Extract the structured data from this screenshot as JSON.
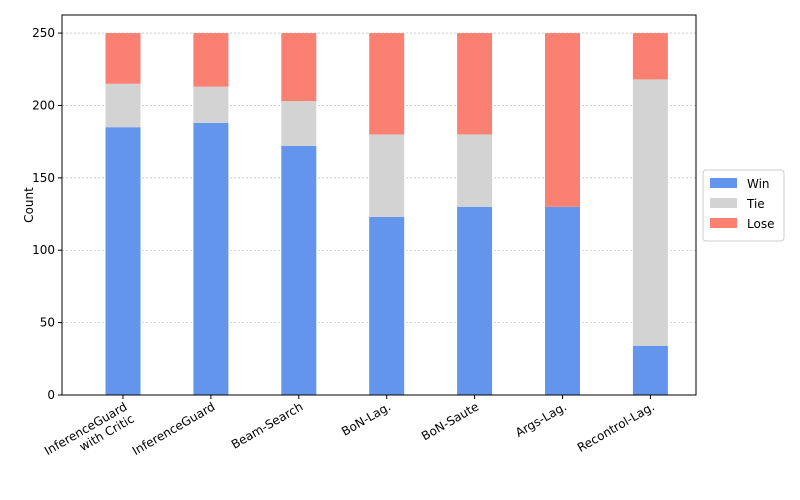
{
  "chart_data": {
    "type": "bar",
    "stacked": true,
    "categories": [
      [
        "InferenceGuard",
        "with Critic"
      ],
      [
        "InferenceGuard"
      ],
      [
        "Beam-Search"
      ],
      [
        "BoN-Lag."
      ],
      [
        "BoN-Saute"
      ],
      [
        "Args-Lag."
      ],
      [
        "Recontrol-Lag."
      ]
    ],
    "series": [
      {
        "name": "Win",
        "color": "#6495ED",
        "values": [
          185,
          188,
          172,
          123,
          130,
          130,
          34
        ]
      },
      {
        "name": "Tie",
        "color": "#D3D3D3",
        "values": [
          30,
          25,
          31,
          57,
          50,
          0,
          184
        ]
      },
      {
        "name": "Lose",
        "color": "#FA8072",
        "values": [
          35,
          37,
          47,
          70,
          70,
          120,
          32
        ]
      }
    ],
    "ylabel": "Count",
    "xlabel": "",
    "ylim": [
      0,
      262.5
    ],
    "yticks": [
      0,
      50,
      100,
      150,
      200,
      250
    ],
    "grid": "y-dashed",
    "legend_position": "center-right"
  }
}
